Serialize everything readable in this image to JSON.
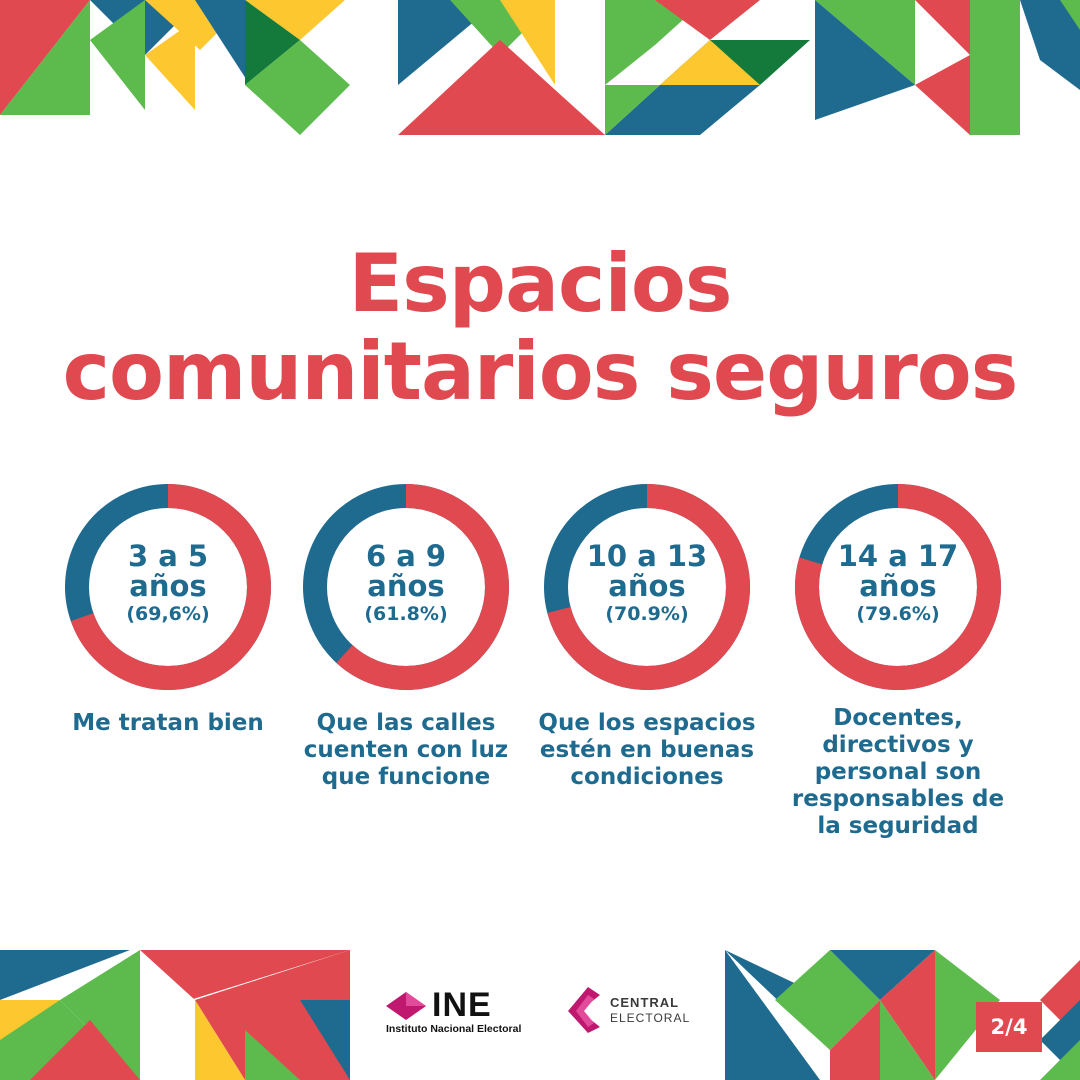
{
  "title": {
    "line1": "Espacios",
    "line2": "comunitarios seguros"
  },
  "colors": {
    "red": "#e0494f",
    "blue": "#1f6a8f",
    "green": "#5dbb4d",
    "dark_green": "#137a3c",
    "yellow": "#fdc82f",
    "white": "#ffffff"
  },
  "chart_data": {
    "type": "donut",
    "categories": [
      "3 a 5 años",
      "6 a 9 años",
      "10 a 13 años",
      "14 a 17 años"
    ],
    "values": [
      69.6,
      61.8,
      70.9,
      79.6
    ],
    "percent_labels": [
      "(69,6%)",
      "(61.8%)",
      "(70.9%)",
      "(79.6%)"
    ],
    "age_line1": [
      "3 a 5",
      "6 a 9",
      "10 a 13",
      "14 a 17"
    ],
    "age_line2": [
      "años",
      "años",
      "años",
      "años"
    ],
    "captions": [
      [
        "Me tratan bien"
      ],
      [
        "Que las calles",
        "cuenten con luz",
        "que funcione"
      ],
      [
        "Que los espacios",
        "estén en buenas",
        "condiciones"
      ],
      [
        "Docentes,",
        "directivos y",
        "personal son",
        "responsables de",
        "la seguridad"
      ]
    ],
    "range": [
      0,
      100
    ]
  },
  "logos": {
    "ine_word": "INE",
    "ine_sub": "Instituto Nacional Electoral",
    "ce_line1": "CENTRAL",
    "ce_line2": "ELECTORAL"
  },
  "page_indicator": "2/4"
}
